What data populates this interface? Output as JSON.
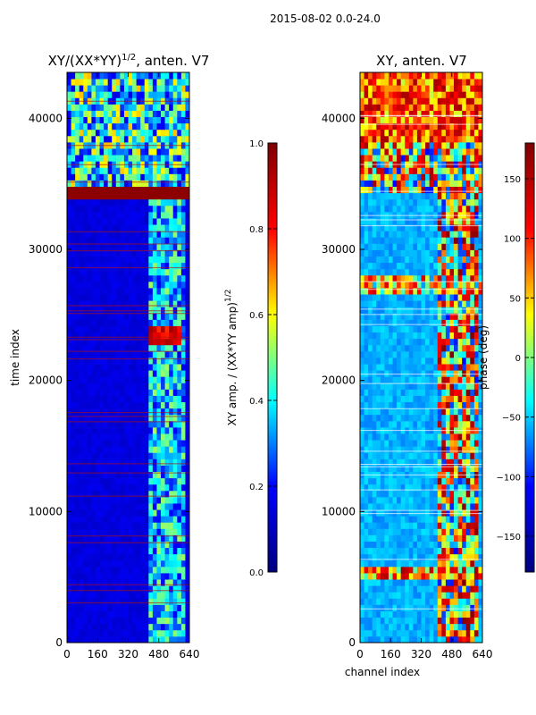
{
  "suptitle": "2015-08-02 0.0-24.0",
  "colors": {
    "jet_stops": [
      "#00007f",
      "#0000ff",
      "#00ffff",
      "#ffff00",
      "#ff0000",
      "#7f0000"
    ],
    "axis": "#000000",
    "background": "#ffffff"
  },
  "chart_data": [
    {
      "type": "heatmap",
      "title_base": "XY/(XX*YY)",
      "title_exp": "1/2",
      "title_tail": ", anten. V7",
      "ylabel": "time index",
      "xlabel": "",
      "xlim": [
        0,
        640
      ],
      "ylim": [
        0,
        43500
      ],
      "xticks": [
        "0",
        "160",
        "320",
        "480",
        "640"
      ],
      "yticks": [
        "0",
        "10000",
        "20000",
        "30000",
        "40000"
      ],
      "colorbar": {
        "label_base": "XY amp. / (XX*YY amp)",
        "label_exp": "1/2",
        "range": [
          0,
          1
        ],
        "ticks": [
          "0.0",
          "0.2",
          "0.4",
          "0.6",
          "0.8",
          "1.0"
        ]
      }
    },
    {
      "type": "heatmap",
      "title": "XY, anten. V7",
      "xlabel": "channel index",
      "ylabel": "",
      "xlim": [
        0,
        640
      ],
      "ylim": [
        0,
        43500
      ],
      "xticks": [
        "0",
        "160",
        "320",
        "480",
        "640"
      ],
      "yticks": [
        "0",
        "10000",
        "20000",
        "30000",
        "40000"
      ],
      "colorbar": {
        "label": "phase (deg)",
        "range": [
          -180,
          180
        ],
        "ticks": [
          "−150",
          "−100",
          "−50",
          "0",
          "50",
          "100",
          "150"
        ]
      }
    }
  ]
}
